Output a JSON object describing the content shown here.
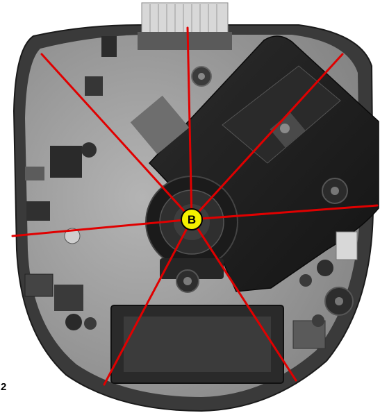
{
  "figure": {
    "number_label": "2",
    "center_marker_label": "B",
    "colors": {
      "ray": "#e00000",
      "marker_fill": "#f4f000",
      "marker_stroke": "#000000",
      "housing": "#3a3a3a",
      "board": "#9a9a9a",
      "mechanism": "#1e1e1e"
    }
  }
}
